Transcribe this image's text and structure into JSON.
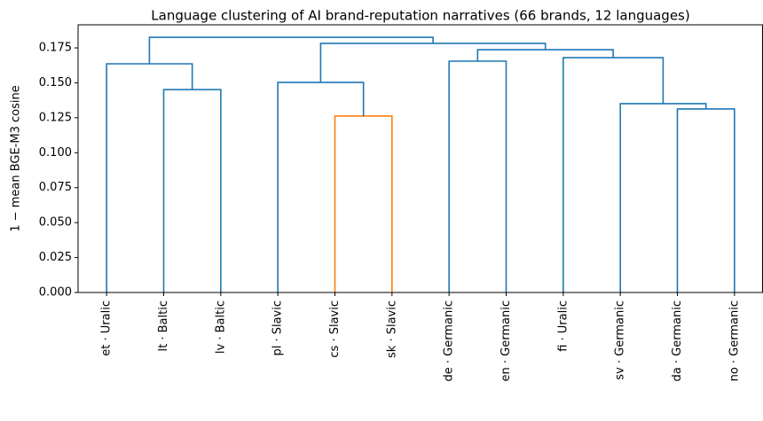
{
  "chart_data": {
    "type": "dendrogram",
    "title": "Language clustering of AI brand-reputation narratives (66 brands, 12 languages)",
    "y_label": "1 − mean BGE-M3 cosine",
    "leaves": [
      "et · Uralic",
      "lt · Baltic",
      "lv · Baltic",
      "pl · Slavic",
      "cs · Slavic",
      "sk · Slavic",
      "de · Germanic",
      "en · Germanic",
      "fi · Uralic",
      "sv · Germanic",
      "da · Germanic",
      "no · Germanic"
    ],
    "links": [
      {
        "a": 1,
        "b": 2,
        "height": 0.1452,
        "color": "#1f77b4"
      },
      {
        "a": 0,
        "b": 12,
        "height": 0.1636,
        "color": "#1f77b4"
      },
      {
        "a": 4,
        "b": 5,
        "height": 0.1262,
        "color": "#ff7f0e"
      },
      {
        "a": 3,
        "b": 14,
        "height": 0.1503,
        "color": "#1f77b4"
      },
      {
        "a": 10,
        "b": 11,
        "height": 0.1313,
        "color": "#1f77b4"
      },
      {
        "a": 9,
        "b": 16,
        "height": 0.1351,
        "color": "#1f77b4"
      },
      {
        "a": 8,
        "b": 17,
        "height": 0.168,
        "color": "#1f77b4"
      },
      {
        "a": 6,
        "b": 7,
        "height": 0.1655,
        "color": "#1f77b4"
      },
      {
        "a": 19,
        "b": 18,
        "height": 0.1737,
        "color": "#1f77b4"
      },
      {
        "a": 15,
        "b": 20,
        "height": 0.1782,
        "color": "#1f77b4"
      },
      {
        "a": 13,
        "b": 21,
        "height": 0.1826,
        "color": "#1f77b4"
      }
    ],
    "ylim": [
      0,
      0.1915
    ],
    "yticks": [
      {
        "value": 0,
        "label": "0.000"
      },
      {
        "value": 0.025,
        "label": "0.025"
      },
      {
        "value": 0.05,
        "label": "0.050"
      },
      {
        "value": 0.075,
        "label": "0.075"
      },
      {
        "value": 0.1,
        "label": "0.100"
      },
      {
        "value": 0.125,
        "label": "0.125"
      },
      {
        "value": 0.15,
        "label": "0.150"
      },
      {
        "value": 0.175,
        "label": "0.175"
      }
    ]
  }
}
